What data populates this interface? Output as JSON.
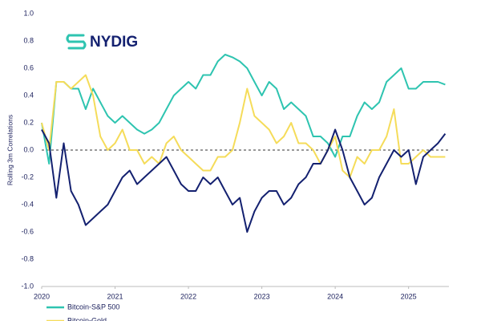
{
  "chart_data": {
    "type": "line",
    "logo": "NYDIG",
    "y_label": "Rolling 3m Correlations",
    "x": [
      2020.0,
      2020.1,
      2020.2,
      2020.3,
      2020.4,
      2020.5,
      2020.6,
      2020.7,
      2020.8,
      2020.9,
      2021.0,
      2021.1,
      2021.2,
      2021.3,
      2021.4,
      2021.5,
      2021.6,
      2021.7,
      2021.8,
      2021.9,
      2022.0,
      2022.1,
      2022.2,
      2022.3,
      2022.4,
      2022.5,
      2022.6,
      2022.7,
      2022.8,
      2022.9,
      2023.0,
      2023.1,
      2023.2,
      2023.3,
      2023.4,
      2023.5,
      2023.6,
      2023.7,
      2023.8,
      2023.9,
      2024.0,
      2024.1,
      2024.2,
      2024.3,
      2024.4,
      2024.5,
      2024.6,
      2024.7,
      2024.8,
      2024.9,
      2025.0,
      2025.1,
      2025.2,
      2025.3,
      2025.4,
      2025.5
    ],
    "series": [
      {
        "name": "Bitcoin-S&P 500",
        "color": "#2ec4b0",
        "values": [
          0.2,
          -0.1,
          0.5,
          0.5,
          0.45,
          0.45,
          0.3,
          0.45,
          0.35,
          0.25,
          0.2,
          0.25,
          0.2,
          0.15,
          0.12,
          0.15,
          0.2,
          0.3,
          0.4,
          0.45,
          0.5,
          0.45,
          0.55,
          0.55,
          0.65,
          0.7,
          0.68,
          0.65,
          0.6,
          0.5,
          0.4,
          0.5,
          0.45,
          0.3,
          0.35,
          0.3,
          0.25,
          0.1,
          0.1,
          0.05,
          -0.05,
          0.1,
          0.1,
          0.25,
          0.35,
          0.3,
          0.35,
          0.5,
          0.55,
          0.6,
          0.45,
          0.45,
          0.5,
          0.5,
          0.5,
          0.48
        ]
      },
      {
        "name": "Bitcoin-Gold",
        "color": "#f5dc5a",
        "values": [
          0.2,
          0.0,
          0.5,
          0.5,
          0.45,
          0.5,
          0.55,
          0.4,
          0.1,
          0.0,
          0.05,
          0.15,
          0.0,
          0.0,
          -0.1,
          -0.05,
          -0.1,
          0.05,
          0.1,
          0.0,
          -0.05,
          -0.1,
          -0.15,
          -0.15,
          -0.05,
          -0.05,
          0.0,
          0.2,
          0.45,
          0.25,
          0.2,
          0.15,
          0.05,
          0.1,
          0.2,
          0.05,
          0.05,
          0.0,
          -0.1,
          0.0,
          0.1,
          -0.15,
          -0.2,
          -0.05,
          -0.1,
          0.0,
          0.0,
          0.1,
          0.3,
          -0.1,
          -0.1,
          -0.05,
          0.0,
          -0.05,
          -0.05,
          -0.05
        ]
      },
      {
        "color": "#142170",
        "values": [
          0.15,
          0.05,
          -0.35,
          0.05,
          -0.3,
          -0.4,
          -0.55,
          -0.5,
          -0.45,
          -0.4,
          -0.3,
          -0.2,
          -0.15,
          -0.25,
          -0.2,
          -0.15,
          -0.1,
          -0.05,
          -0.15,
          -0.25,
          -0.3,
          -0.3,
          -0.2,
          -0.25,
          -0.2,
          -0.3,
          -0.4,
          -0.35,
          -0.6,
          -0.45,
          -0.35,
          -0.3,
          -0.3,
          -0.4,
          -0.35,
          -0.25,
          -0.2,
          -0.1,
          -0.1,
          0.0,
          0.15,
          0.0,
          -0.2,
          -0.3,
          -0.4,
          -0.35,
          -0.2,
          -0.1,
          0.0,
          -0.05,
          0.0,
          -0.25,
          -0.05,
          0.0,
          0.05,
          0.12
        ]
      }
    ],
    "xlim": [
      2020,
      2025.55
    ],
    "xticks": [
      2020,
      2021,
      2022,
      2023,
      2024,
      2025
    ],
    "ylim": [
      -1,
      1
    ],
    "yticks": [
      {
        "value": 1,
        "label": "1.0"
      },
      0.8,
      0.6,
      0.4,
      0.2,
      {
        "value": 0,
        "label": "0.0"
      },
      -0.2,
      -0.4,
      -0.6,
      -0.8,
      {
        "value": -1,
        "label": "-1.0"
      }
    ],
    "zero_line": true,
    "grid": false
  }
}
